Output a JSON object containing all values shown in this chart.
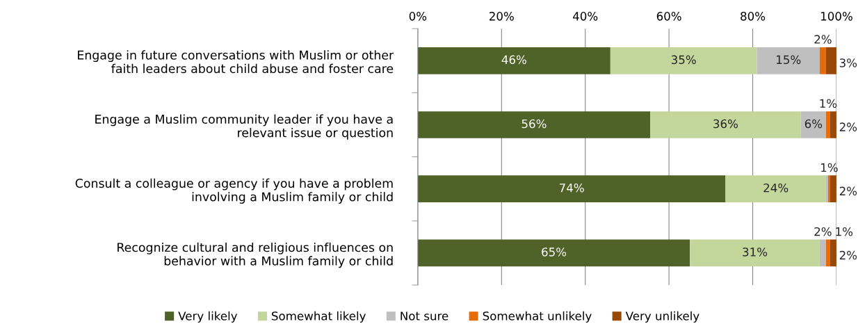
{
  "chart_data": {
    "type": "bar",
    "orientation": "horizontal",
    "stacked": true,
    "categories": [
      "Engage in future conversations with Muslim or other\nfaith leaders about child abuse and foster care",
      "Engage a Muslim community leader if you have a\nrelevant issue or question",
      "Consult a colleague or agency if you have a problem\ninvolving a Muslim family or child",
      "Recognize cultural and religious influences on\nbehavior with a Muslim family or child"
    ],
    "series": [
      {
        "name": "Very likely",
        "color": "#4f6228",
        "values": [
          46,
          55.5,
          73.5,
          65
        ],
        "value_labels": [
          "46%",
          "56%",
          "74%",
          "65%"
        ]
      },
      {
        "name": "Somewhat likely",
        "color": "#c3d69b",
        "values": [
          35,
          36,
          24,
          31
        ],
        "value_labels": [
          "35%",
          "36%",
          "24%",
          "31%"
        ]
      },
      {
        "name": "Not sure",
        "color": "#bfbfbf",
        "values": [
          15,
          6,
          0.5,
          1.5
        ],
        "value_labels": [
          "15%",
          "6%",
          null,
          "2%"
        ]
      },
      {
        "name": "Somewhat unlikely",
        "color": "#e46c0a",
        "values": [
          1.5,
          1,
          0.5,
          1
        ],
        "value_labels": [
          "2%",
          "1%",
          "1%",
          "1%"
        ]
      },
      {
        "name": "Very unlikely",
        "color": "#984807",
        "values": [
          2.5,
          1.5,
          1.5,
          1.5
        ],
        "value_labels": [
          "3%",
          "2%",
          "2%",
          "2%"
        ]
      }
    ],
    "xlim": [
      0,
      100
    ],
    "xticks": [
      {
        "value": 0,
        "label": "0%"
      },
      {
        "value": 20,
        "label": "20%"
      },
      {
        "value": 40,
        "label": "40%"
      },
      {
        "value": 60,
        "label": "60%"
      },
      {
        "value": 80,
        "label": "80%"
      },
      {
        "value": 100,
        "label": "100%"
      }
    ],
    "grid": "x",
    "legend": "bottom"
  }
}
